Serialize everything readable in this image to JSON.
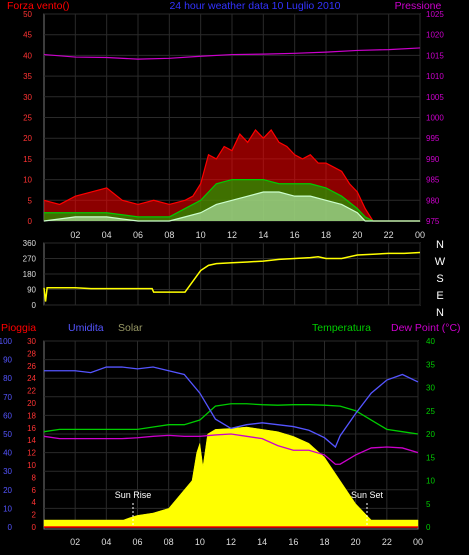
{
  "panel1": {
    "title": "24 hour weather data  10 Luglio 2010",
    "left_label": "Forza vento()",
    "right_label": "Pressione",
    "left_ticks": [
      "0",
      "5",
      "10",
      "15",
      "20",
      "25",
      "30",
      "35",
      "40",
      "45",
      "50"
    ],
    "right_ticks": [
      "975",
      "980",
      "985",
      "990",
      "995",
      "1000",
      "1005",
      "1010",
      "1015",
      "1020",
      "1025"
    ],
    "x_ticks": [
      "02",
      "04",
      "06",
      "08",
      "10",
      "12",
      "14",
      "16",
      "18",
      "20",
      "22",
      "00"
    ]
  },
  "panel2": {
    "dir_ticks": [
      "360",
      "270",
      "180",
      "90",
      "0"
    ],
    "compass": [
      "N",
      "W",
      "S",
      "E",
      "N"
    ],
    "x_ticks": [
      "02",
      "04",
      "06",
      "08",
      "10",
      "12",
      "14",
      "16",
      "18",
      "20",
      "22",
      "00"
    ]
  },
  "panel3": {
    "labels": {
      "pioggia": "Pioggia",
      "umidita": "Umidita",
      "solar": "Solar",
      "temperatura": "Temperatura",
      "dewpoint": "Dew Point (°C)"
    },
    "humidity_ticks": [
      "0",
      "10",
      "20",
      "30",
      "40",
      "50",
      "60",
      "70",
      "80",
      "90",
      "100"
    ],
    "rain_ticks": [
      "0",
      "2",
      "4",
      "6",
      "8",
      "10",
      "12",
      "14",
      "16",
      "18",
      "20",
      "22",
      "24",
      "26",
      "28",
      "30"
    ],
    "temp_ticks": [
      "0",
      "5",
      "10",
      "15",
      "20",
      "25",
      "30",
      "35",
      "40"
    ],
    "x_ticks": [
      "02",
      "04",
      "06",
      "08",
      "10",
      "12",
      "14",
      "16",
      "18",
      "20",
      "22",
      "00"
    ],
    "sun_rise": "Sun Rise",
    "sun_set": "Sun Set"
  },
  "colors": {
    "wind_gust": "#ff0000",
    "wind_avg": "#00cc00",
    "wind_min": "#ccffcc",
    "pressure": "#cc00cc",
    "direction": "#ffff00",
    "humidity": "#5555ff",
    "temperature": "#00cc00",
    "dewpoint": "#cc00cc",
    "solar": "#ffff00",
    "rain": "#ff0000"
  },
  "chart_data": [
    {
      "type": "line",
      "title": "24 hour weather data  10 Luglio 2010",
      "xlabel": "",
      "ylabel": "Forza vento()",
      "ylabel_right": "Pressione",
      "ylim": [
        0,
        50
      ],
      "ylim_right": [
        975,
        1025
      ],
      "series": [
        {
          "name": "",
          "color": "#ff0000",
          "x": [
            0,
            1,
            2,
            3,
            4,
            5,
            6,
            7,
            8,
            9,
            9.5,
            10,
            10.5,
            11,
            11.5,
            12,
            12.5,
            13,
            13.5,
            14,
            14.5,
            15,
            15.5,
            16,
            16.5,
            17,
            17.5,
            18,
            18.5,
            19,
            19.5,
            20,
            20.5,
            21,
            22,
            23,
            24
          ],
          "values": [
            5,
            4,
            6,
            7,
            8,
            5,
            4,
            5,
            4,
            5,
            6,
            9,
            16,
            15,
            18,
            17,
            21,
            19,
            22,
            20,
            22,
            19,
            18,
            16,
            15,
            16,
            14,
            14,
            13,
            12,
            9,
            7,
            3,
            0,
            0,
            0,
            0
          ]
        },
        {
          "name": "",
          "color": "#00cc00",
          "x": [
            0,
            2,
            4,
            6,
            8,
            9,
            10,
            11,
            12,
            13,
            14,
            15,
            16,
            17,
            18,
            19,
            20,
            20.5,
            21,
            22,
            24
          ],
          "values": [
            2,
            2,
            2,
            1,
            1,
            3,
            5,
            9,
            10,
            10,
            10,
            9,
            9,
            9,
            8,
            6,
            3,
            1,
            0,
            0,
            0
          ]
        },
        {
          "name": "",
          "color": "#ccffcc",
          "x": [
            0,
            2,
            4,
            6,
            8,
            9,
            10,
            11,
            12,
            13,
            14,
            15,
            16,
            17,
            18,
            19,
            20,
            20.5,
            21,
            22,
            24
          ],
          "values": [
            0,
            1,
            1,
            0,
            0,
            1,
            2,
            4,
            5,
            6,
            7,
            7,
            6,
            6,
            5,
            4,
            2,
            0,
            0,
            0,
            0
          ]
        },
        {
          "name": "Pressione",
          "color": "#cc00cc",
          "axis": "right",
          "x": [
            0,
            2,
            4,
            6,
            8,
            10,
            12,
            14,
            16,
            18,
            20,
            22,
            24
          ],
          "values": [
            1015.2,
            1014.6,
            1014.5,
            1014.1,
            1014.3,
            1014.8,
            1015.2,
            1015.3,
            1015.5,
            1015.8,
            1016.2,
            1016.4,
            1016.8
          ]
        }
      ]
    },
    {
      "type": "line",
      "title": "",
      "ylabel": "",
      "ylim": [
        0,
        360
      ],
      "series": [
        {
          "name": "",
          "color": "#ffff00",
          "x": [
            0,
            0.1,
            0.2,
            1,
            2,
            3,
            4,
            5,
            6,
            6.9,
            7,
            8,
            9,
            9.2,
            10,
            10.5,
            11,
            12,
            13,
            14,
            15,
            16,
            17,
            17.5,
            18,
            19,
            20,
            21,
            22,
            23,
            24
          ],
          "values": [
            100,
            20,
            100,
            100,
            100,
            95,
            95,
            95,
            95,
            95,
            75,
            75,
            75,
            100,
            200,
            230,
            240,
            245,
            250,
            255,
            265,
            270,
            275,
            280,
            270,
            270,
            290,
            295,
            300,
            300,
            305
          ]
        }
      ]
    },
    {
      "type": "area",
      "title": "",
      "ylabel": "Umidita",
      "ylim": [
        0,
        100
      ],
      "ylim_right": [
        0,
        40
      ],
      "series": [
        {
          "name": "Umidita",
          "color": "#5555ff",
          "axis": "left",
          "x": [
            0,
            1,
            2,
            3,
            4,
            5,
            6,
            7,
            8,
            9,
            10,
            11,
            12,
            13,
            14,
            15,
            16,
            17,
            18,
            18.7,
            19,
            20,
            21,
            22,
            23,
            24
          ],
          "values": [
            84,
            84,
            84,
            83,
            86,
            86,
            85,
            86,
            84,
            82,
            72,
            58,
            53,
            55,
            56,
            55,
            54,
            52,
            48,
            43,
            49,
            61,
            72,
            79,
            82,
            78
          ]
        },
        {
          "name": "Temperatura",
          "color": "#00cc00",
          "axis": "right",
          "x": [
            0,
            1,
            2,
            3,
            4,
            5,
            6,
            7,
            8,
            9,
            10,
            11,
            12,
            13,
            14,
            15,
            16,
            17,
            18,
            19,
            20,
            21,
            22,
            23,
            24
          ],
          "values": [
            20.5,
            21,
            21,
            21,
            21,
            21,
            21,
            21.5,
            22,
            22,
            23,
            26,
            26.5,
            26.5,
            26.3,
            26.2,
            26.3,
            26.3,
            26.2,
            26,
            25,
            23,
            21,
            20.5,
            20
          ]
        },
        {
          "name": "Dew Point (°C)",
          "color": "#cc00cc",
          "axis": "right",
          "x": [
            0,
            1,
            2,
            3,
            4,
            5,
            6,
            7,
            8,
            9,
            10,
            11,
            12,
            13,
            14,
            15,
            16,
            17,
            18,
            18.7,
            19,
            20,
            21,
            22,
            23,
            24
          ],
          "values": [
            19.5,
            19,
            19,
            19,
            19,
            19,
            19.2,
            19.5,
            19.7,
            19.5,
            19.5,
            19.8,
            20,
            19.5,
            19,
            17.5,
            16.5,
            16.5,
            15.5,
            13.5,
            13.5,
            15.5,
            17,
            17.2,
            17,
            16
          ]
        },
        {
          "name": "Solar",
          "color": "#ffff00",
          "axis": "right",
          "x": [
            0,
            2,
            4,
            5.1,
            5.5,
            6,
            7,
            8,
            8.5,
            9,
            9.5,
            9.8,
            10,
            10.2,
            10.5,
            11,
            12,
            13,
            14,
            15,
            16,
            17,
            18,
            19,
            20,
            21,
            21.5,
            22,
            24
          ],
          "values": [
            1.5,
            1.5,
            1.5,
            1.5,
            2,
            2.5,
            3,
            4,
            6,
            8,
            10,
            16,
            18,
            13,
            20,
            21,
            21.2,
            21.5,
            21,
            20.5,
            19.5,
            18,
            15,
            10,
            5,
            1.5,
            1.5,
            1.5,
            1.5
          ]
        },
        {
          "name": "Pioggia",
          "color": "#ff0000",
          "axis": "rain",
          "x": [
            0,
            24
          ],
          "values": [
            0,
            0
          ]
        }
      ]
    }
  ]
}
